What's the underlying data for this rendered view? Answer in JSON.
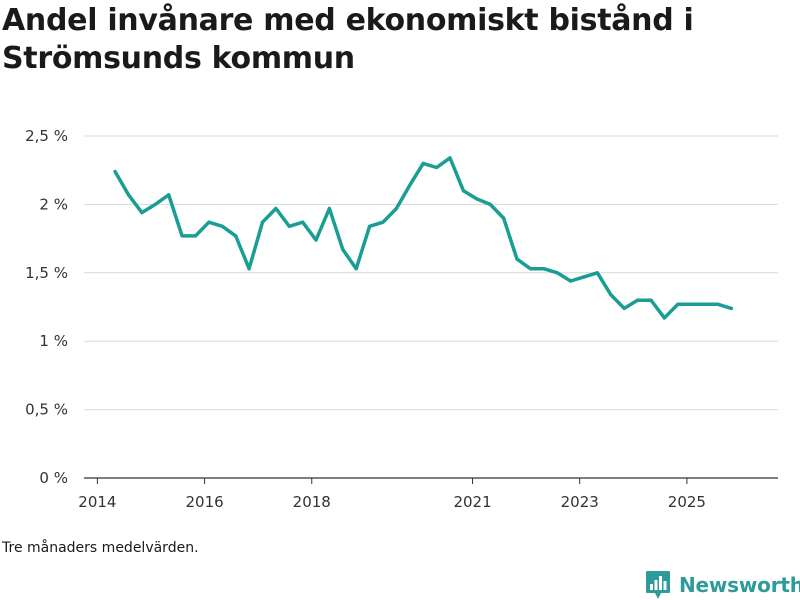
{
  "chart_data": {
    "type": "line",
    "title": "Andel invånare med ekonomiskt bistånd i Strömsunds kommun",
    "note": "Tre månaders medelvärden.",
    "xlabel": "",
    "ylabel": "",
    "xlim": [
      2013.75,
      2026.7
    ],
    "ylim": [
      0,
      2.5
    ],
    "xticks": [
      {
        "value": 2014,
        "label": "2014"
      },
      {
        "value": 2016,
        "label": "2016"
      },
      {
        "value": 2018,
        "label": "2018"
      },
      {
        "value": 2021,
        "label": "2021"
      },
      {
        "value": 2023,
        "label": "2023"
      },
      {
        "value": 2025,
        "label": "2025"
      }
    ],
    "yticks": [
      {
        "value": 0,
        "label": "0 %"
      },
      {
        "value": 0.5,
        "label": "0,5 %"
      },
      {
        "value": 1,
        "label": "1 %"
      },
      {
        "value": 1.5,
        "label": "1,5 %"
      },
      {
        "value": 2,
        "label": "2 %"
      },
      {
        "value": 2.5,
        "label": "2,5 %"
      }
    ],
    "grid": true,
    "color": "#1a9e94",
    "series": [
      {
        "name": "Andel invånare med ekonomiskt bistånd",
        "x": [
          2014.33,
          2014.58,
          2014.83,
          2015.08,
          2015.33,
          2015.58,
          2015.83,
          2016.08,
          2016.33,
          2016.58,
          2016.83,
          2017.08,
          2017.33,
          2017.58,
          2017.83,
          2018.08,
          2018.33,
          2018.58,
          2018.83,
          2019.08,
          2019.33,
          2019.58,
          2019.83,
          2020.08,
          2020.33,
          2020.58,
          2020.83,
          2021.08,
          2021.33,
          2021.58,
          2021.83,
          2022.08,
          2022.33,
          2022.58,
          2022.83,
          2023.08,
          2023.33,
          2023.58,
          2023.83,
          2024.08,
          2024.33,
          2024.58,
          2024.83,
          2025.08,
          2025.33,
          2025.58,
          2025.83
        ],
        "values": [
          2.24,
          2.07,
          1.94,
          2.0,
          2.07,
          1.77,
          1.77,
          1.87,
          1.84,
          1.77,
          1.53,
          1.87,
          1.97,
          1.84,
          1.87,
          1.74,
          1.97,
          1.67,
          1.53,
          1.84,
          1.87,
          1.97,
          2.14,
          2.3,
          2.27,
          2.34,
          2.1,
          2.04,
          2.0,
          1.9,
          1.6,
          1.53,
          1.53,
          1.5,
          1.44,
          1.47,
          1.5,
          1.34,
          1.24,
          1.3,
          1.3,
          1.17,
          1.27,
          1.27,
          1.27,
          1.27,
          1.24
        ]
      }
    ]
  },
  "branding": {
    "logo_text": "Newsworthy",
    "logo_icon": "bar-chart-badge-icon",
    "accent_color": "#2f9a9a"
  }
}
